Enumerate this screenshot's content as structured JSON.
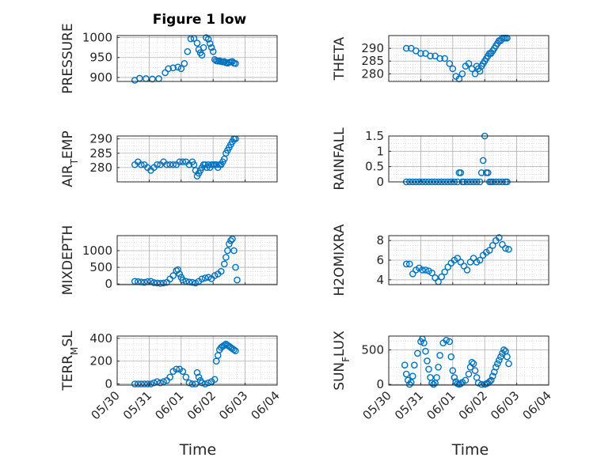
{
  "title": "Figure 1 low",
  "xlabel": "Time",
  "colors": {
    "marker": "#0072BD",
    "axis": "#262626",
    "grid": "#c8c8c8"
  },
  "chart_data": [
    {
      "type": "scatter",
      "ylabel": "PRESSURE",
      "ylim": [
        890,
        1005
      ],
      "yticks": [
        900,
        950,
        1000
      ],
      "xlim": [
        "05/30",
        "06/04"
      ],
      "xticks": [
        "05/30",
        "05/31",
        "06/01",
        "06/02",
        "06/03",
        "06/04"
      ],
      "x": [
        0.55,
        0.7,
        0.9,
        1.1,
        1.3,
        1.5,
        1.6,
        1.75,
        1.9,
        2.0,
        2.1,
        2.2,
        2.3,
        2.4,
        2.5,
        2.55,
        2.6,
        2.65,
        2.7,
        2.78,
        2.85,
        2.9,
        2.95,
        3.0,
        3.05,
        3.1,
        3.15,
        3.2,
        3.25,
        3.3,
        3.35,
        3.4,
        3.45,
        3.5,
        3.55,
        3.6,
        3.65,
        3.7
      ],
      "y": [
        893,
        898,
        897,
        896,
        897,
        912,
        922,
        924,
        926,
        922,
        935,
        965,
        997,
        998,
        986,
        970,
        962,
        956,
        975,
        1000,
        996,
        985,
        975,
        965,
        945,
        942,
        941,
        942,
        940,
        939,
        940,
        937,
        936,
        938,
        939,
        940,
        936,
        935
      ]
    },
    {
      "type": "scatter",
      "ylabel": "THETA",
      "ylim": [
        277,
        295
      ],
      "yticks": [
        280,
        285,
        290
      ],
      "xlim": [
        "05/30",
        "06/04"
      ],
      "xticks": [
        "05/30",
        "05/31",
        "06/01",
        "06/02",
        "06/03",
        "06/04"
      ],
      "x": [
        0.55,
        0.7,
        0.85,
        1.0,
        1.15,
        1.3,
        1.45,
        1.6,
        1.75,
        1.9,
        2.0,
        2.1,
        2.2,
        2.3,
        2.4,
        2.5,
        2.6,
        2.7,
        2.75,
        2.8,
        2.85,
        2.9,
        2.95,
        3.0,
        3.05,
        3.1,
        3.15,
        3.2,
        3.25,
        3.3,
        3.35,
        3.4,
        3.45,
        3.5,
        3.55,
        3.6,
        3.65,
        3.7
      ],
      "y": [
        290,
        290,
        289,
        288,
        288,
        287,
        287,
        286,
        286,
        284,
        282,
        279,
        278,
        280,
        283,
        284,
        282,
        280,
        283,
        282,
        281,
        283,
        284,
        285,
        286,
        287,
        288,
        288,
        289,
        290,
        291,
        292,
        293,
        293,
        294,
        294,
        294,
        294
      ]
    },
    {
      "type": "scatter",
      "ylabel": "AIR_TEMP",
      "ylim": [
        275,
        291
      ],
      "yticks": [
        280,
        285,
        290
      ],
      "xlim": [
        "05/30",
        "06/04"
      ],
      "xticks": [
        "05/30",
        "05/31",
        "06/01",
        "06/02",
        "06/03",
        "06/04"
      ],
      "x": [
        0.55,
        0.65,
        0.75,
        0.85,
        0.95,
        1.05,
        1.15,
        1.25,
        1.35,
        1.45,
        1.55,
        1.65,
        1.75,
        1.85,
        1.95,
        2.05,
        2.15,
        2.25,
        2.35,
        2.4,
        2.45,
        2.5,
        2.55,
        2.6,
        2.65,
        2.7,
        2.75,
        2.8,
        2.85,
        2.9,
        2.95,
        3.0,
        3.05,
        3.1,
        3.15,
        3.2,
        3.25,
        3.3,
        3.35,
        3.4,
        3.45,
        3.5,
        3.55,
        3.6,
        3.65,
        3.7
      ],
      "y": [
        281,
        282,
        281,
        281,
        280,
        279,
        280,
        281,
        281,
        282,
        281,
        281,
        281,
        281,
        282,
        282,
        282,
        281,
        282,
        281,
        279,
        277,
        278,
        279,
        280,
        281,
        281,
        280,
        281,
        280,
        281,
        281,
        281,
        281,
        280,
        281,
        281,
        282,
        283,
        285,
        286,
        287,
        288,
        289,
        290,
        290
      ]
    },
    {
      "type": "scatter",
      "ylabel": "RAINFALL",
      "ylim": [
        0,
        1.5
      ],
      "yticks": [
        0,
        0.5,
        1,
        1.5
      ],
      "xlim": [
        "05/30",
        "06/04"
      ],
      "xticks": [
        "05/30",
        "05/31",
        "06/01",
        "06/02",
        "06/03",
        "06/04"
      ],
      "x": [
        0.55,
        0.65,
        0.75,
        0.85,
        0.95,
        1.05,
        1.15,
        1.25,
        1.35,
        1.45,
        1.55,
        1.65,
        1.75,
        1.85,
        1.95,
        2.05,
        2.15,
        2.2,
        2.25,
        2.3,
        2.35,
        2.45,
        2.55,
        2.65,
        2.75,
        2.85,
        2.9,
        2.95,
        3.0,
        3.05,
        3.1,
        3.15,
        3.2,
        3.25,
        3.35,
        3.45,
        3.55,
        3.65,
        3.7
      ],
      "y": [
        0,
        0,
        0,
        0,
        0,
        0,
        0,
        0,
        0,
        0,
        0,
        0,
        0,
        0,
        0,
        0,
        0,
        0.3,
        0.3,
        0,
        0,
        0,
        0,
        0,
        0,
        0,
        0.3,
        0.7,
        1.5,
        0.3,
        0.3,
        0,
        0,
        0,
        0,
        0,
        0,
        0,
        0
      ]
    },
    {
      "type": "scatter",
      "ylabel": "MIXDEPTH",
      "ylim": [
        -20,
        1450
      ],
      "yticks": [
        0,
        500,
        1000
      ],
      "xlim": [
        "05/30",
        "06/04"
      ],
      "xticks": [
        "05/30",
        "05/31",
        "06/01",
        "06/02",
        "06/03",
        "06/04"
      ],
      "x": [
        0.55,
        0.65,
        0.75,
        0.85,
        0.95,
        1.05,
        1.15,
        1.25,
        1.35,
        1.45,
        1.55,
        1.65,
        1.75,
        1.85,
        1.9,
        1.95,
        2.0,
        2.05,
        2.15,
        2.25,
        2.35,
        2.45,
        2.55,
        2.65,
        2.75,
        2.85,
        2.95,
        3.05,
        3.15,
        3.25,
        3.35,
        3.4,
        3.45,
        3.5,
        3.55,
        3.6,
        3.65,
        3.7,
        3.75
      ],
      "y": [
        80,
        70,
        60,
        50,
        70,
        80,
        40,
        30,
        20,
        30,
        50,
        150,
        250,
        400,
        430,
        300,
        200,
        120,
        80,
        60,
        50,
        30,
        80,
        150,
        180,
        200,
        160,
        250,
        300,
        380,
        600,
        800,
        1000,
        1200,
        1300,
        1350,
        1000,
        500,
        120
      ]
    },
    {
      "type": "scatter",
      "ylabel": "H2OMIXRA",
      "ylim": [
        3.5,
        8.5
      ],
      "yticks": [
        4,
        6,
        8
      ],
      "xlim": [
        "05/30",
        "06/04"
      ],
      "xticks": [
        "05/30",
        "05/31",
        "06/01",
        "06/02",
        "06/03",
        "06/04"
      ],
      "x": [
        0.55,
        0.65,
        0.75,
        0.85,
        0.95,
        1.05,
        1.15,
        1.25,
        1.35,
        1.45,
        1.55,
        1.65,
        1.75,
        1.85,
        1.95,
        2.05,
        2.15,
        2.25,
        2.35,
        2.45,
        2.55,
        2.65,
        2.75,
        2.85,
        2.95,
        3.05,
        3.15,
        3.25,
        3.35,
        3.45,
        3.55,
        3.65,
        3.75
      ],
      "y": [
        5.6,
        5.6,
        4.6,
        5.0,
        5.2,
        5.0,
        5.0,
        4.9,
        4.7,
        4.2,
        3.8,
        4.3,
        4.8,
        5.3,
        5.7,
        6.0,
        6.2,
        5.8,
        5.4,
        5.0,
        5.8,
        6.2,
        5.8,
        6.0,
        6.5,
        6.8,
        7.0,
        7.5,
        8.0,
        8.3,
        7.6,
        7.2,
        7.1
      ]
    },
    {
      "type": "scatter",
      "ylabel": "TERR_MSL",
      "ylim": [
        -10,
        420
      ],
      "yticks": [
        0,
        200,
        400
      ],
      "xlim": [
        "05/30",
        "06/04"
      ],
      "xticks": [
        "05/30",
        "05/31",
        "06/01",
        "06/02",
        "06/03",
        "06/04"
      ],
      "x": [
        0.55,
        0.65,
        0.75,
        0.85,
        0.95,
        1.05,
        1.15,
        1.25,
        1.35,
        1.45,
        1.55,
        1.65,
        1.75,
        1.85,
        1.95,
        2.05,
        2.15,
        2.25,
        2.35,
        2.45,
        2.5,
        2.55,
        2.6,
        2.65,
        2.75,
        2.85,
        2.95,
        3.05,
        3.1,
        3.15,
        3.2,
        3.25,
        3.3,
        3.35,
        3.4,
        3.45,
        3.5,
        3.55,
        3.6,
        3.65,
        3.7
      ],
      "y": [
        0,
        0,
        0,
        0,
        0,
        0,
        10,
        20,
        10,
        20,
        30,
        60,
        110,
        130,
        130,
        110,
        60,
        10,
        0,
        0,
        100,
        60,
        30,
        10,
        0,
        10,
        20,
        40,
        200,
        250,
        300,
        320,
        330,
        340,
        350,
        340,
        330,
        320,
        310,
        300,
        290
      ]
    },
    {
      "type": "scatter",
      "ylabel": "SUN_FLUX",
      "ylim": [
        -10,
        700
      ],
      "yticks": [
        0,
        500
      ],
      "xlim": [
        "05/30",
        "06/04"
      ],
      "xticks": [
        "05/30",
        "05/31",
        "06/01",
        "06/02",
        "06/03",
        "06/04"
      ],
      "x": [
        0.5,
        0.55,
        0.6,
        0.65,
        0.7,
        0.75,
        0.8,
        0.9,
        1.0,
        1.05,
        1.1,
        1.15,
        1.2,
        1.25,
        1.3,
        1.35,
        1.4,
        1.45,
        1.5,
        1.55,
        1.6,
        1.7,
        1.8,
        1.9,
        1.95,
        2.0,
        2.05,
        2.1,
        2.15,
        2.2,
        2.25,
        2.3,
        2.4,
        2.5,
        2.55,
        2.6,
        2.65,
        2.7,
        2.75,
        2.8,
        2.9,
        3.0,
        3.05,
        3.1,
        3.15,
        3.2,
        3.25,
        3.3,
        3.35,
        3.4,
        3.45,
        3.5,
        3.55,
        3.6,
        3.65,
        3.7,
        3.75
      ],
      "y": [
        280,
        150,
        60,
        0,
        30,
        120,
        280,
        450,
        620,
        660,
        600,
        480,
        340,
        220,
        100,
        20,
        0,
        20,
        100,
        250,
        420,
        600,
        640,
        620,
        400,
        200,
        100,
        40,
        10,
        0,
        10,
        30,
        60,
        150,
        250,
        320,
        300,
        200,
        100,
        20,
        0,
        0,
        10,
        20,
        40,
        60,
        120,
        180,
        250,
        300,
        350,
        400,
        450,
        500,
        480,
        400,
        300
      ]
    }
  ]
}
